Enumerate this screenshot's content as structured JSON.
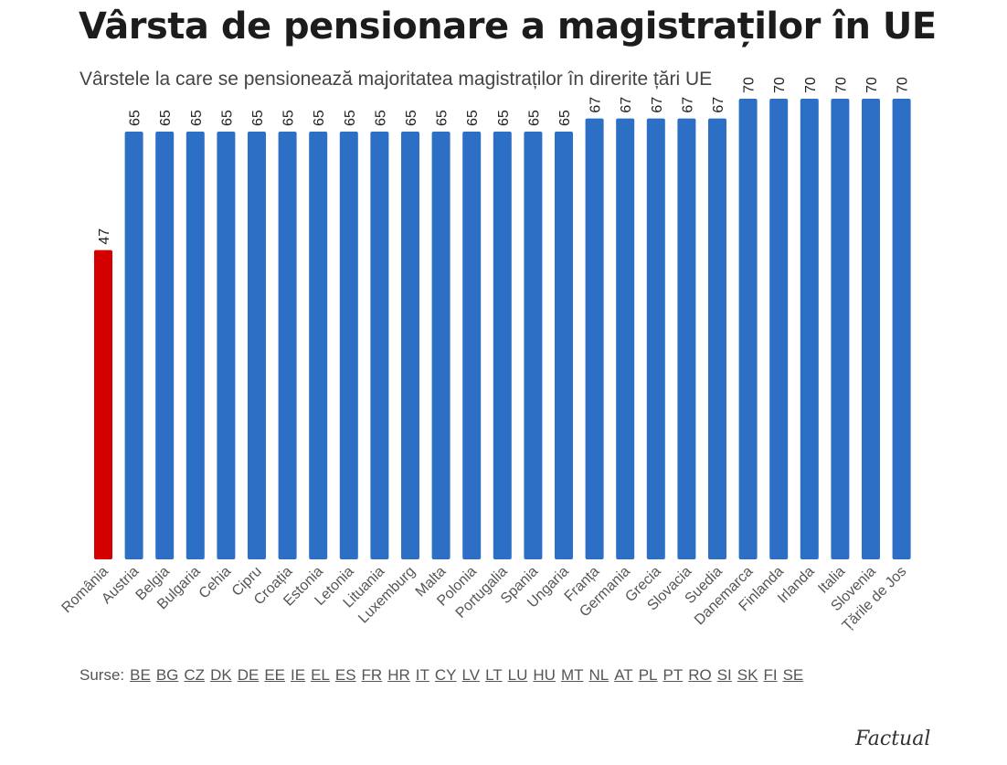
{
  "header": {
    "title": "Vârsta de pensionare a magistraților în UE",
    "subtitle": "Vârstele la care se pensionează majoritatea magistraților în direrite țări UE"
  },
  "chart_data": {
    "type": "bar",
    "categories": [
      "România",
      "Austria",
      "Belgia",
      "Bulgaria",
      "Cehia",
      "Cipru",
      "Croația",
      "Estonia",
      "Letonia",
      "Lituania",
      "Luxemburg",
      "Malta",
      "Polonia",
      "Portugalia",
      "Spania",
      "Ungaria",
      "Franța",
      "Germania",
      "Grecia",
      "Slovacia",
      "Suedia",
      "Danemarca",
      "Finlanda",
      "Irlanda",
      "Italia",
      "Slovenia",
      "Țările de Jos"
    ],
    "values": [
      47,
      65,
      65,
      65,
      65,
      65,
      65,
      65,
      65,
      65,
      65,
      65,
      65,
      65,
      65,
      65,
      67,
      67,
      67,
      67,
      67,
      70,
      70,
      70,
      70,
      70,
      70
    ],
    "highlight_index": 0,
    "colors": {
      "bar": "#2d6fc4",
      "highlight": "#d40000"
    },
    "ylim": [
      0,
      70
    ],
    "grid": false,
    "data_labels": "vertical, above bars"
  },
  "sources": {
    "label": "Surse:",
    "links": [
      "BE",
      "BG",
      "CZ",
      "DK",
      "DE",
      "EE",
      "IE",
      "EL",
      "ES",
      "FR",
      "HR",
      "IT",
      "CY",
      "LV",
      "LT",
      "LU",
      "HU",
      "MT",
      "NL",
      "AT",
      "PL",
      "PT",
      "RO",
      "SI",
      "SK",
      "FI",
      "SE"
    ]
  },
  "brand": {
    "logo_text": "Factual"
  }
}
